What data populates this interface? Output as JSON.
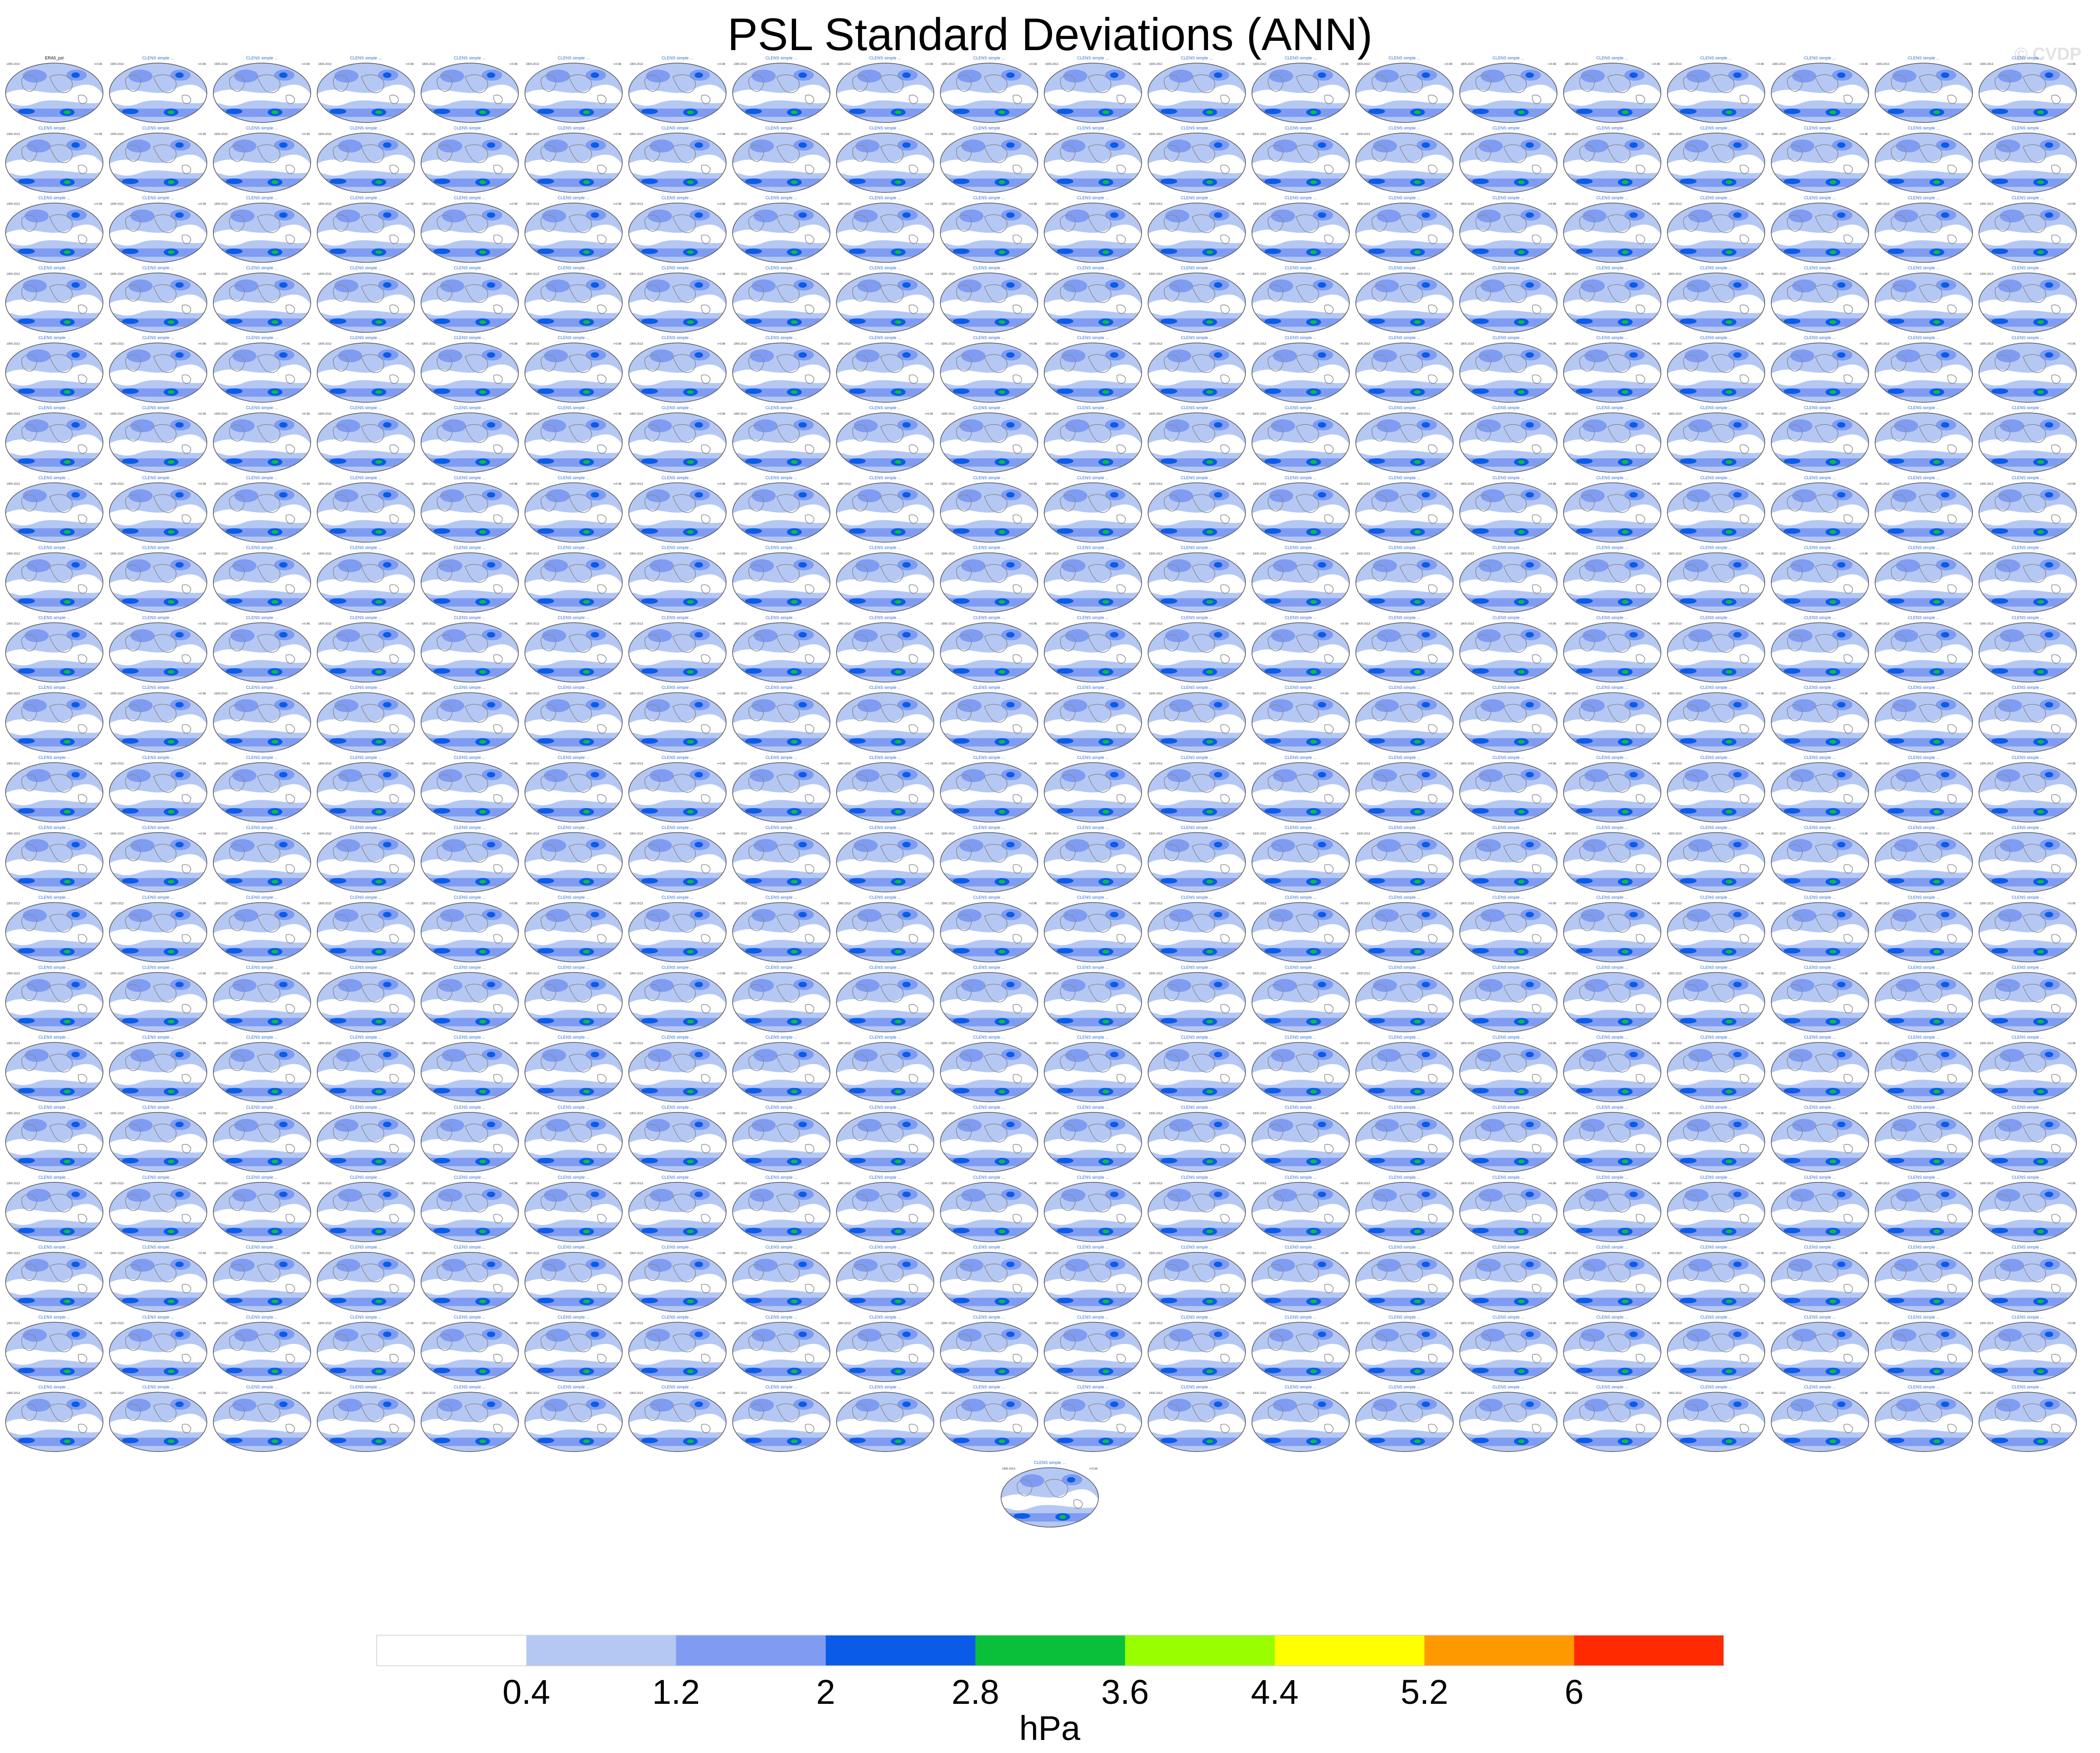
{
  "title": "PSL Standard Deviations (ANN)",
  "watermark": "© CVDP",
  "colors": {
    "panel_fill_levels": [
      "#ffffff",
      "#b5c8f4",
      "#7f9cf2",
      "#0a5ce8",
      "#0ac03a"
    ],
    "land_line": "#8a8a8a",
    "title_green": "#19a34a",
    "title_blue": "#2a6ad8"
  },
  "panel_grid": {
    "rows": 20,
    "cols": 20,
    "extra_row_count": 1,
    "total_panels": 401,
    "first_panel_label": "ERA5_psl",
    "panel_label_text": "CLENS simple ...",
    "corner_left_text": "1900-2013",
    "corner_right_text": "r=0.96"
  },
  "chart_data": {
    "type": "heatmap",
    "title": "PSL Standard Deviations (ANN)",
    "description_units": "hPa",
    "colorbar": {
      "boundaries": [
        0.4,
        1.2,
        2,
        2.8,
        3.6,
        4.4,
        5.2,
        6
      ],
      "tick_labels": [
        "0.4",
        "1.2",
        "2",
        "2.8",
        "3.6",
        "4.4",
        "5.2",
        "6"
      ],
      "colors": [
        "#ffffff",
        "#b5c8f4",
        "#7f9cf2",
        "#0a5ce8",
        "#0ac03a",
        "#99ff00",
        "#ffff00",
        "#ff9900",
        "#ff2a00"
      ],
      "label": "hPa"
    }
  }
}
